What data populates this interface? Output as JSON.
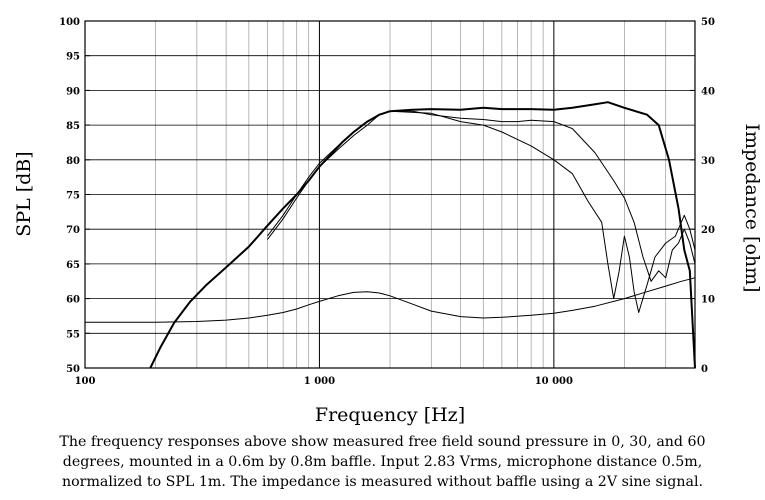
{
  "chart_data": {
    "type": "line",
    "xlabel": "Frequency [Hz]",
    "ylabel": "SPL [dB]",
    "y2label": "Impedance [ohm]",
    "xscale": "log",
    "xlim": [
      100,
      40000
    ],
    "ylim": [
      50,
      100
    ],
    "y2lim": [
      0,
      50
    ],
    "grid": true,
    "x_ticks": [
      100,
      1000,
      10000
    ],
    "x_tick_labels": [
      "100",
      "1 000",
      "10 000"
    ],
    "y_ticks": [
      50,
      55,
      60,
      65,
      70,
      75,
      80,
      85,
      90,
      95,
      100
    ],
    "y_tick_labels": [
      "50",
      "55",
      "60",
      "65",
      "70",
      "75",
      "80",
      "85",
      "90",
      "95",
      "100"
    ],
    "y2_ticks": [
      0,
      10,
      20,
      30,
      40,
      50
    ],
    "y2_tick_labels": [
      "0",
      "10",
      "20",
      "30",
      "40",
      "50"
    ],
    "series": [
      {
        "axis": "left",
        "weight": "bold",
        "points": [
          [
            190,
            50
          ],
          [
            210,
            53
          ],
          [
            240,
            56.5
          ],
          [
            280,
            59.5
          ],
          [
            330,
            62
          ],
          [
            400,
            64.5
          ],
          [
            500,
            67.5
          ],
          [
            600,
            70.5
          ],
          [
            700,
            73
          ],
          [
            800,
            75
          ],
          [
            900,
            77
          ],
          [
            1000,
            79
          ],
          [
            1100,
            80.5
          ],
          [
            1250,
            82.5
          ],
          [
            1400,
            84
          ],
          [
            1600,
            85.5
          ],
          [
            1800,
            86.5
          ],
          [
            2000,
            87
          ],
          [
            2500,
            87.2
          ],
          [
            3000,
            87.3
          ],
          [
            4000,
            87.2
          ],
          [
            5000,
            87.5
          ],
          [
            6000,
            87.3
          ],
          [
            8000,
            87.3
          ],
          [
            10000,
            87.2
          ],
          [
            12000,
            87.5
          ],
          [
            15000,
            88
          ],
          [
            17000,
            88.3
          ],
          [
            20000,
            87.5
          ],
          [
            25000,
            86.5
          ],
          [
            28000,
            85
          ],
          [
            31000,
            80
          ],
          [
            34000,
            73
          ],
          [
            36000,
            67
          ],
          [
            38000,
            64
          ],
          [
            40000,
            50
          ]
        ]
      },
      {
        "axis": "left",
        "weight": "normal",
        "points": [
          [
            600,
            69
          ],
          [
            700,
            72
          ],
          [
            800,
            75
          ],
          [
            900,
            77.5
          ],
          [
            1000,
            79.5
          ],
          [
            1200,
            82
          ],
          [
            1400,
            84
          ],
          [
            1600,
            85.5
          ],
          [
            1800,
            86.5
          ],
          [
            2000,
            87
          ],
          [
            2500,
            87
          ],
          [
            3000,
            86.5
          ],
          [
            4000,
            86
          ],
          [
            5000,
            85.8
          ],
          [
            6000,
            85.5
          ],
          [
            7000,
            85.5
          ],
          [
            8000,
            85.7
          ],
          [
            10000,
            85.5
          ],
          [
            12000,
            84.5
          ],
          [
            15000,
            81
          ],
          [
            18000,
            77
          ],
          [
            20000,
            74.5
          ],
          [
            22000,
            71
          ],
          [
            24000,
            66
          ],
          [
            26000,
            62.5
          ],
          [
            28000,
            64
          ],
          [
            30000,
            63
          ],
          [
            32000,
            67
          ],
          [
            34000,
            68
          ],
          [
            36000,
            70
          ],
          [
            38000,
            68
          ],
          [
            40000,
            65
          ]
        ]
      },
      {
        "axis": "left",
        "weight": "normal",
        "points": [
          [
            600,
            68.5
          ],
          [
            700,
            71.5
          ],
          [
            800,
            74.5
          ],
          [
            900,
            77
          ],
          [
            1000,
            79
          ],
          [
            1200,
            81.5
          ],
          [
            1400,
            83.5
          ],
          [
            1600,
            85
          ],
          [
            1800,
            86.5
          ],
          [
            2000,
            87
          ],
          [
            3000,
            86.7
          ],
          [
            4000,
            85.5
          ],
          [
            5000,
            85
          ],
          [
            6000,
            84
          ],
          [
            8000,
            82
          ],
          [
            10000,
            80
          ],
          [
            12000,
            78
          ],
          [
            14000,
            74
          ],
          [
            16000,
            71
          ],
          [
            17000,
            65
          ],
          [
            18000,
            60
          ],
          [
            19000,
            64
          ],
          [
            20000,
            69
          ],
          [
            21000,
            66
          ],
          [
            22000,
            61
          ],
          [
            23000,
            58
          ],
          [
            25000,
            62
          ],
          [
            27000,
            66
          ],
          [
            30000,
            68
          ],
          [
            33000,
            69
          ],
          [
            36000,
            72
          ],
          [
            38000,
            70
          ],
          [
            40000,
            67
          ]
        ]
      },
      {
        "axis": "right",
        "weight": "normal",
        "points": [
          [
            100,
            6.6
          ],
          [
            200,
            6.6
          ],
          [
            300,
            6.7
          ],
          [
            400,
            6.9
          ],
          [
            500,
            7.2
          ],
          [
            600,
            7.6
          ],
          [
            700,
            8
          ],
          [
            800,
            8.5
          ],
          [
            900,
            9.1
          ],
          [
            1000,
            9.6
          ],
          [
            1200,
            10.4
          ],
          [
            1400,
            10.9
          ],
          [
            1600,
            11
          ],
          [
            1800,
            10.8
          ],
          [
            2000,
            10.4
          ],
          [
            2500,
            9.2
          ],
          [
            3000,
            8.2
          ],
          [
            4000,
            7.4
          ],
          [
            5000,
            7.2
          ],
          [
            6000,
            7.3
          ],
          [
            8000,
            7.6
          ],
          [
            10000,
            7.9
          ],
          [
            12000,
            8.3
          ],
          [
            15000,
            8.9
          ],
          [
            20000,
            10
          ],
          [
            25000,
            11
          ],
          [
            30000,
            11.8
          ],
          [
            35000,
            12.5
          ],
          [
            40000,
            13
          ]
        ]
      }
    ]
  },
  "caption": {
    "line1": "The frequency responses above show measured free field sound pressure in 0, 30, and 60",
    "line2": "degrees, mounted in a 0.6m by 0.8m baffle. Input 2.83 Vrms, microphone distance 0.5m,",
    "line3": "normalized to SPL 1m. The impedance is measured without baffle using a 2V sine signal."
  }
}
